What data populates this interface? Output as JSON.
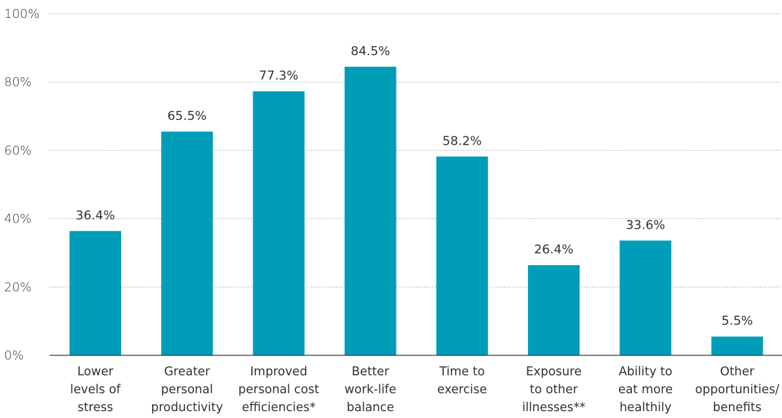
{
  "chart_data": {
    "type": "bar",
    "categories": [
      [
        "Lower",
        "levels of",
        "stress"
      ],
      [
        "Greater",
        "personal",
        "productivity"
      ],
      [
        "Improved",
        "personal cost",
        "efficiencies*"
      ],
      [
        "Better",
        "work-life",
        "balance"
      ],
      [
        "Time to",
        "exercise"
      ],
      [
        "Exposure",
        "to other",
        "illnesses**"
      ],
      [
        "Ability to",
        "eat more",
        "healthily"
      ],
      [
        "Other",
        "opportunities/",
        "benefits"
      ]
    ],
    "values": [
      36.4,
      65.5,
      77.3,
      84.5,
      58.2,
      26.4,
      33.6,
      5.5
    ],
    "value_labels": [
      "36.4%",
      "65.5%",
      "77.3%",
      "84.5%",
      "58.2%",
      "26.4%",
      "33.6%",
      "5.5%"
    ],
    "title": "",
    "xlabel": "",
    "ylabel": "",
    "ylim": [
      0,
      100
    ],
    "yticks": [
      0,
      20,
      40,
      60,
      80,
      100
    ],
    "ytick_labels": [
      "0%",
      "20%",
      "40%",
      "60%",
      "80%",
      "100%"
    ],
    "grid": true,
    "bar_color": "#009db8"
  }
}
